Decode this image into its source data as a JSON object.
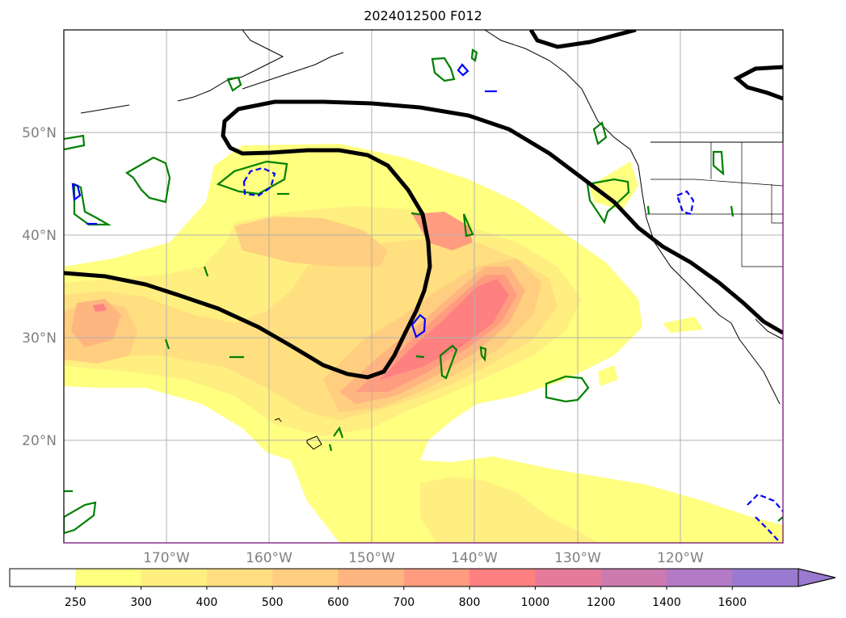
{
  "title": "2024012500 F012",
  "map": {
    "lon_range": [
      -180,
      -110
    ],
    "lat_range": [
      10,
      60
    ],
    "meridians": [
      -170,
      -160,
      -150,
      -140,
      -130,
      -120
    ],
    "parallels": [
      20,
      30,
      40,
      50
    ],
    "lon_labels": [
      "170°W",
      "160°W",
      "150°W",
      "140°W",
      "130°W",
      "120°W"
    ],
    "lat_labels": [
      "20°N",
      "30°N",
      "40°N",
      "50°N"
    ],
    "grid": true,
    "label_color": "#808080"
  },
  "colorbar": {
    "ticks": [
      "250",
      "300",
      "400",
      "500",
      "600",
      "700",
      "800",
      "1000",
      "1200",
      "1400",
      "1600"
    ],
    "colors": [
      "#ffffff",
      "#ffff80",
      "#ffef80",
      "#ffdf80",
      "#ffce80",
      "#ffb580",
      "#ff9c80",
      "#ff8080",
      "#e67a9a",
      "#cc7ab0",
      "#b37ac6",
      "#9a7ad0"
    ],
    "extend": "max"
  },
  "contours": {
    "heavy_line_color": "#000000",
    "green_color": "#008000",
    "blue_color": "#0000ff"
  }
}
